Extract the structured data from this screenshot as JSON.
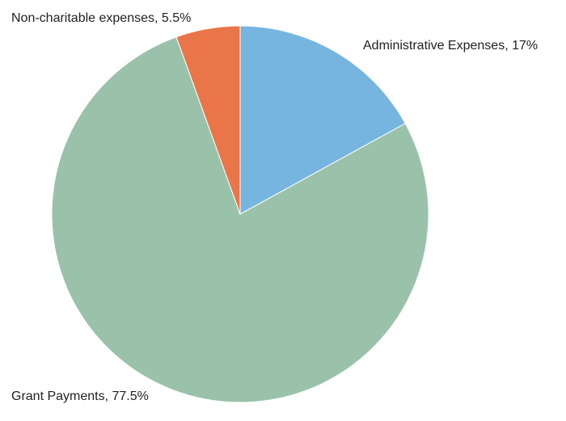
{
  "chart_data": {
    "type": "pie",
    "start_angle_deg": 0,
    "direction": "clockwise",
    "slices": [
      {
        "name": "Administrative Expenses",
        "value": 17,
        "label": "Administrative Expenses, 17%",
        "color": "#76b5e0"
      },
      {
        "name": "Grant Payments",
        "value": 77.5,
        "label": "Grant Payments, 77.5%",
        "color": "#9ac1aa"
      },
      {
        "name": "Non-charitable expenses",
        "value": 5.5,
        "label": "Non-charitable expenses, 5.5%",
        "color": "#ea7548"
      }
    ]
  }
}
